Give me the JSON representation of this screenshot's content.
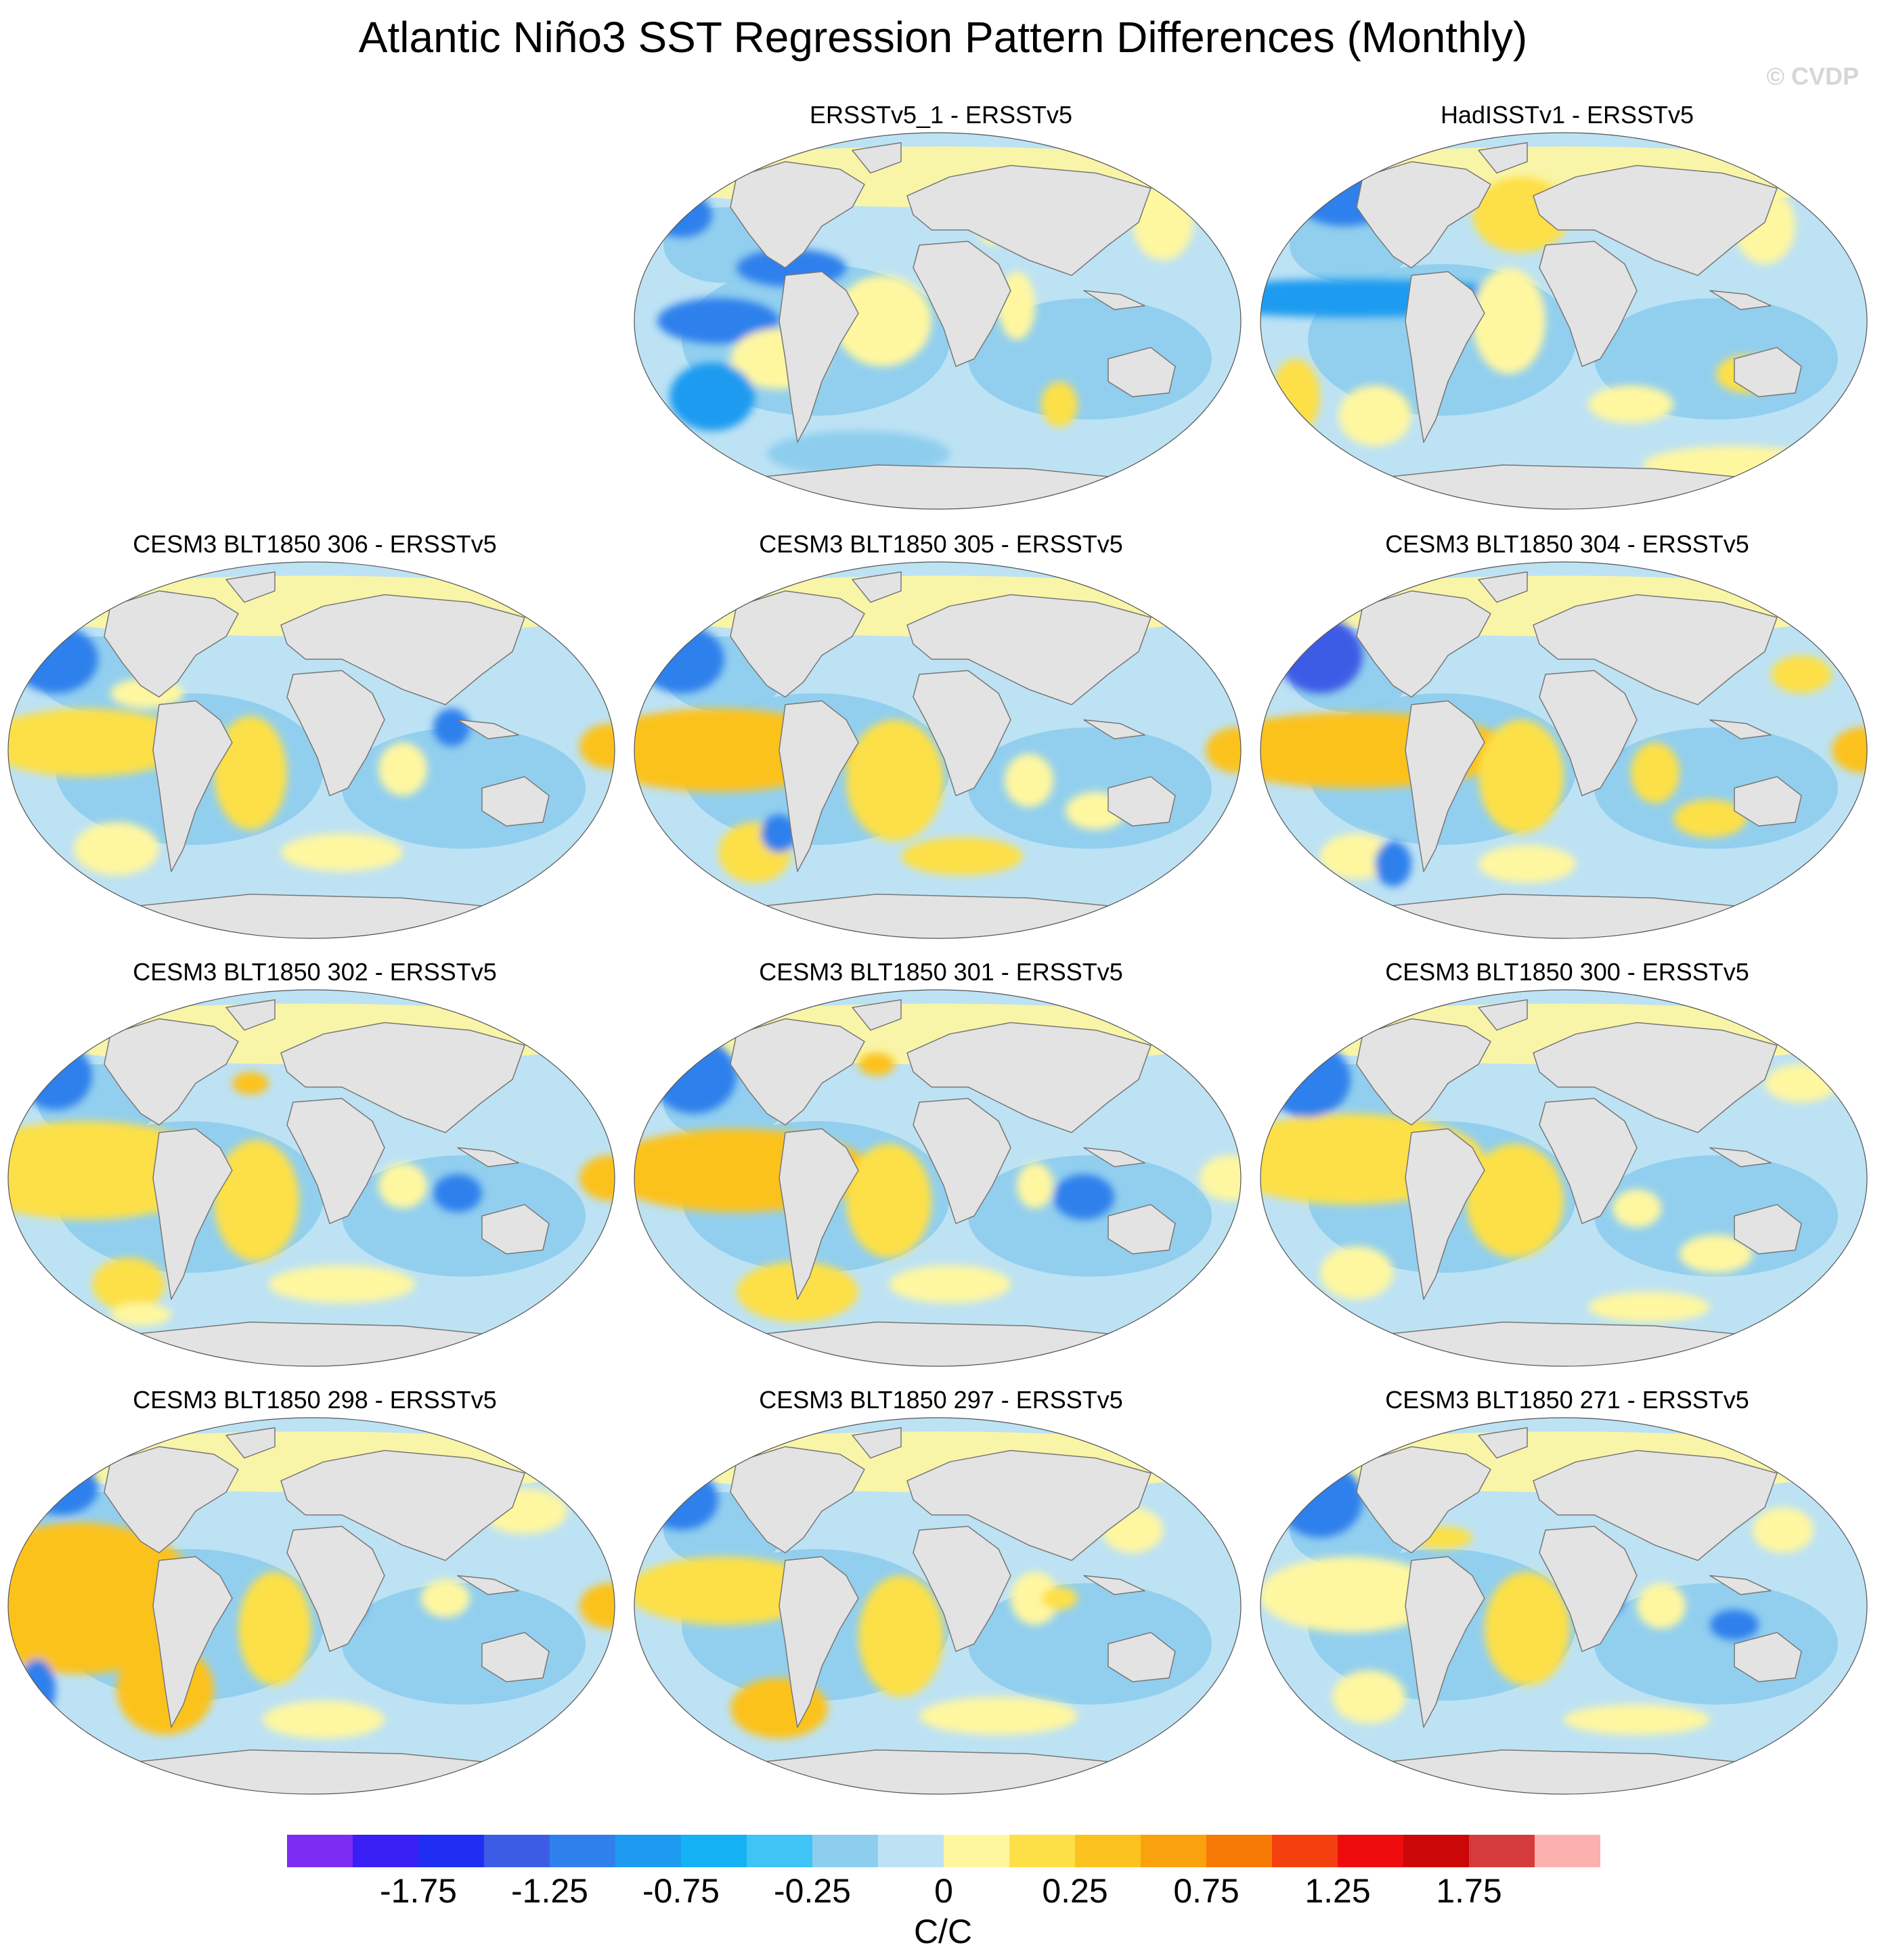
{
  "figure": {
    "title": "Atlantic Niño3 SST Regression Pattern Differences (Monthly)",
    "watermark": "© CVDP",
    "units": "C/C"
  },
  "panels": [
    {
      "title": "ERSSTv5_1 - ERSSTv5",
      "blobs": [
        [
          0.26,
          0.36,
          0.09,
          0.05,
          4
        ],
        [
          0.14,
          0.5,
          0.1,
          0.06,
          4
        ],
        [
          0.41,
          0.5,
          0.08,
          0.12,
          10
        ],
        [
          0.59,
          0.21,
          0.03,
          0.09,
          10
        ],
        [
          0.87,
          0.24,
          0.05,
          0.1,
          10
        ],
        [
          0.63,
          0.46,
          0.03,
          0.09,
          10
        ],
        [
          0.7,
          0.72,
          0.03,
          0.06,
          11
        ],
        [
          0.24,
          0.6,
          0.08,
          0.08,
          10
        ],
        [
          0.13,
          0.7,
          0.07,
          0.09,
          5
        ],
        [
          0.37,
          0.85,
          0.15,
          0.06,
          8
        ],
        [
          0.08,
          0.22,
          0.05,
          0.06,
          4
        ]
      ]
    },
    {
      "title": "HadISSTv1 - ERSSTv5",
      "blobs": [
        [
          0.14,
          0.18,
          0.08,
          0.07,
          4
        ],
        [
          0.15,
          0.44,
          0.3,
          0.05,
          5
        ],
        [
          0.41,
          0.5,
          0.06,
          0.14,
          10
        ],
        [
          0.43,
          0.22,
          0.08,
          0.1,
          11
        ],
        [
          0.8,
          0.64,
          0.05,
          0.05,
          11
        ],
        [
          0.19,
          0.75,
          0.06,
          0.08,
          10
        ],
        [
          0.61,
          0.72,
          0.07,
          0.05,
          10
        ],
        [
          0.83,
          0.25,
          0.05,
          0.1,
          10
        ],
        [
          0.06,
          0.7,
          0.04,
          0.1,
          11
        ],
        [
          0.78,
          0.88,
          0.15,
          0.05,
          10
        ]
      ]
    },
    {
      "title": "CESM3 BLT1850 306 - ERSSTv5",
      "blobs": [
        [
          0.13,
          0.48,
          0.17,
          0.09,
          11
        ],
        [
          0.4,
          0.56,
          0.06,
          0.15,
          11
        ],
        [
          0.99,
          0.49,
          0.05,
          0.06,
          12
        ],
        [
          0.65,
          0.55,
          0.04,
          0.07,
          10
        ],
        [
          0.08,
          0.26,
          0.07,
          0.09,
          4
        ],
        [
          0.18,
          0.76,
          0.07,
          0.07,
          10
        ],
        [
          0.55,
          0.77,
          0.1,
          0.05,
          10
        ],
        [
          0.23,
          0.35,
          0.06,
          0.04,
          10
        ],
        [
          0.73,
          0.44,
          0.03,
          0.05,
          4
        ]
      ]
    },
    {
      "title": "CESM3 BLT1850 305 - ERSSTv5",
      "blobs": [
        [
          0.14,
          0.5,
          0.22,
          0.11,
          12
        ],
        [
          0.43,
          0.58,
          0.08,
          0.16,
          11
        ],
        [
          0.99,
          0.5,
          0.05,
          0.06,
          12
        ],
        [
          0.65,
          0.58,
          0.04,
          0.07,
          10
        ],
        [
          0.08,
          0.26,
          0.07,
          0.09,
          4
        ],
        [
          0.2,
          0.77,
          0.06,
          0.08,
          11
        ],
        [
          0.54,
          0.78,
          0.1,
          0.05,
          11
        ],
        [
          0.76,
          0.66,
          0.05,
          0.05,
          10
        ],
        [
          0.55,
          0.48,
          0.04,
          0.04,
          4
        ],
        [
          0.24,
          0.72,
          0.03,
          0.05,
          4
        ]
      ]
    },
    {
      "title": "CESM3 BLT1850 304 - ERSSTv5",
      "blobs": [
        [
          0.16,
          0.5,
          0.26,
          0.1,
          12
        ],
        [
          0.43,
          0.57,
          0.07,
          0.15,
          11
        ],
        [
          0.99,
          0.5,
          0.05,
          0.06,
          12
        ],
        [
          0.89,
          0.3,
          0.05,
          0.05,
          11
        ],
        [
          0.65,
          0.56,
          0.04,
          0.08,
          11
        ],
        [
          0.1,
          0.25,
          0.07,
          0.1,
          3
        ],
        [
          0.74,
          0.68,
          0.06,
          0.05,
          11
        ],
        [
          0.16,
          0.78,
          0.06,
          0.06,
          10
        ],
        [
          0.44,
          0.8,
          0.08,
          0.05,
          10
        ],
        [
          0.56,
          0.46,
          0.04,
          0.05,
          4
        ],
        [
          0.22,
          0.8,
          0.03,
          0.06,
          4
        ]
      ]
    },
    {
      "title": "CESM3 BLT1850 302 - ERSSTv5",
      "blobs": [
        [
          0.13,
          0.48,
          0.22,
          0.13,
          11
        ],
        [
          0.41,
          0.56,
          0.07,
          0.16,
          11
        ],
        [
          0.99,
          0.5,
          0.05,
          0.06,
          12
        ],
        [
          0.2,
          0.78,
          0.06,
          0.07,
          11
        ],
        [
          0.08,
          0.23,
          0.06,
          0.09,
          4
        ],
        [
          0.65,
          0.52,
          0.04,
          0.06,
          10
        ],
        [
          0.4,
          0.25,
          0.03,
          0.03,
          12
        ],
        [
          0.55,
          0.78,
          0.12,
          0.05,
          10
        ],
        [
          0.22,
          0.86,
          0.05,
          0.03,
          10
        ],
        [
          0.74,
          0.54,
          0.04,
          0.05,
          4
        ]
      ]
    },
    {
      "title": "CESM3 BLT1850 301 - ERSSTv5",
      "blobs": [
        [
          0.17,
          0.48,
          0.22,
          0.11,
          12
        ],
        [
          0.42,
          0.56,
          0.07,
          0.15,
          11
        ],
        [
          0.27,
          0.8,
          0.1,
          0.08,
          11
        ],
        [
          0.98,
          0.5,
          0.05,
          0.06,
          10
        ],
        [
          0.1,
          0.23,
          0.07,
          0.1,
          4
        ],
        [
          0.66,
          0.52,
          0.03,
          0.06,
          10
        ],
        [
          0.4,
          0.2,
          0.03,
          0.03,
          12
        ],
        [
          0.52,
          0.78,
          0.1,
          0.05,
          10
        ],
        [
          0.74,
          0.55,
          0.05,
          0.06,
          4
        ]
      ]
    },
    {
      "title": "CESM3 BLT1850 300 - ERSSTv5",
      "blobs": [
        [
          0.15,
          0.45,
          0.22,
          0.12,
          11
        ],
        [
          0.42,
          0.56,
          0.08,
          0.15,
          11
        ],
        [
          0.08,
          0.24,
          0.07,
          0.1,
          4
        ],
        [
          0.89,
          0.25,
          0.06,
          0.05,
          10
        ],
        [
          0.75,
          0.7,
          0.06,
          0.05,
          10
        ],
        [
          0.16,
          0.75,
          0.06,
          0.07,
          10
        ],
        [
          0.62,
          0.58,
          0.04,
          0.05,
          10
        ],
        [
          0.55,
          0.47,
          0.03,
          0.05,
          4
        ],
        [
          0.64,
          0.84,
          0.1,
          0.04,
          10
        ]
      ]
    },
    {
      "title": "CESM3 BLT1850 298 - ERSSTv5",
      "blobs": [
        [
          0.12,
          0.48,
          0.2,
          0.2,
          12
        ],
        [
          0.26,
          0.72,
          0.08,
          0.12,
          12
        ],
        [
          0.99,
          0.5,
          0.05,
          0.06,
          12
        ],
        [
          0.44,
          0.56,
          0.06,
          0.15,
          11
        ],
        [
          0.09,
          0.19,
          0.06,
          0.07,
          4
        ],
        [
          0.52,
          0.8,
          0.1,
          0.05,
          10
        ],
        [
          0.72,
          0.48,
          0.04,
          0.05,
          10
        ],
        [
          0.85,
          0.25,
          0.07,
          0.06,
          10
        ],
        [
          0.56,
          0.5,
          0.03,
          0.04,
          4
        ],
        [
          0.05,
          0.72,
          0.03,
          0.08,
          4
        ]
      ]
    },
    {
      "title": "CESM3 BLT1850 297 - ERSSTv5",
      "blobs": [
        [
          0.15,
          0.46,
          0.16,
          0.09,
          11
        ],
        [
          0.44,
          0.58,
          0.07,
          0.16,
          11
        ],
        [
          0.24,
          0.77,
          0.08,
          0.08,
          12
        ],
        [
          0.08,
          0.22,
          0.06,
          0.08,
          4
        ],
        [
          0.66,
          0.48,
          0.04,
          0.07,
          10
        ],
        [
          0.6,
          0.79,
          0.13,
          0.05,
          10
        ],
        [
          0.82,
          0.3,
          0.05,
          0.06,
          10
        ],
        [
          0.55,
          0.43,
          0.04,
          0.04,
          4
        ],
        [
          0.7,
          0.48,
          0.03,
          0.03,
          11
        ]
      ]
    },
    {
      "title": "CESM3 BLT1850 271 - ERSSTv5",
      "blobs": [
        [
          0.15,
          0.47,
          0.15,
          0.1,
          10
        ],
        [
          0.44,
          0.56,
          0.07,
          0.15,
          11
        ],
        [
          0.1,
          0.22,
          0.07,
          0.1,
          4
        ],
        [
          0.86,
          0.3,
          0.05,
          0.06,
          10
        ],
        [
          0.66,
          0.5,
          0.04,
          0.06,
          10
        ],
        [
          0.18,
          0.74,
          0.06,
          0.07,
          10
        ],
        [
          0.62,
          0.8,
          0.12,
          0.04,
          10
        ],
        [
          0.56,
          0.48,
          0.04,
          0.05,
          4
        ],
        [
          0.3,
          0.32,
          0.05,
          0.03,
          11
        ],
        [
          0.78,
          0.55,
          0.04,
          0.04,
          4
        ]
      ]
    }
  ],
  "colorbar": {
    "colors": [
      "#7d2cf2",
      "#3a1ff5",
      "#1f2ef0",
      "#3d5ce6",
      "#2f80ec",
      "#1e9bf0",
      "#14b2f5",
      "#3fc4f5",
      "#8dcdee",
      "#bde2f4",
      "#fff7a0",
      "#fde047",
      "#fcc21f",
      "#f9a20e",
      "#f77a06",
      "#f4400f",
      "#ee0c0c",
      "#cc0707",
      "#d63b3b",
      "#fdb0b0"
    ],
    "labels": [
      "-1.75",
      "-1.25",
      "-0.75",
      "-0.25",
      "0",
      "0.25",
      "0.75",
      "1.25",
      "1.75"
    ],
    "label_boundary_index": [
      1,
      3,
      5,
      7,
      9,
      11,
      13,
      15,
      17
    ]
  }
}
